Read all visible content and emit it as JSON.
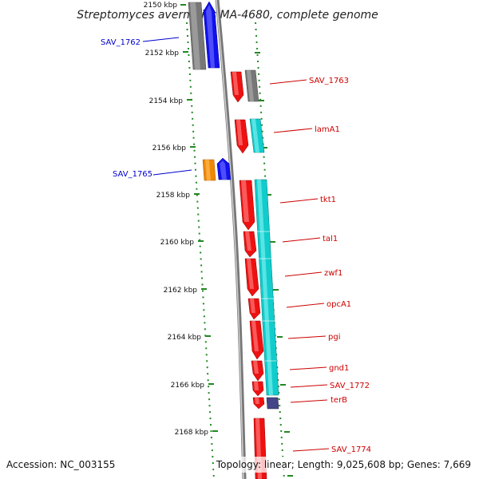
{
  "title": "Streptomyces avermitilis MA-4680, complete genome",
  "accession": "Accession: NC_003155",
  "topology": "Topology: linear; Length: 9,025,608 bp; Genes: 7,669",
  "positions": [
    "2150 kbp",
    "2152 kbp",
    "2154 kbp",
    "2156 kbp",
    "2158 kbp",
    "2160 kbp",
    "2162 kbp",
    "2164 kbp",
    "2166 kbp",
    "2168 kbp"
  ],
  "colors": {
    "red": "#ee1111",
    "gray": "#777777",
    "blue": "#1111ee",
    "cyan": "#11cccc",
    "orange": "#ee8800",
    "purple": "#444488",
    "green": "#228822",
    "red_label": "#cc0000",
    "blue_label": "#0000cc"
  },
  "genes": [
    {
      "label": "SAV_1762",
      "strand": "left",
      "color": "gray",
      "lane": "left",
      "start": 2150.0,
      "end": 2152.8
    },
    {
      "label": "",
      "strand": "left",
      "color": "blue",
      "lane": "inner-left",
      "start": 2149.9,
      "end": 2152.7
    },
    {
      "label": "SAV_1763",
      "strand": "right",
      "color": "red",
      "lane": "inner-right",
      "start": 2152.9,
      "end": 2154.2
    },
    {
      "label": "",
      "strand": "right",
      "color": "gray",
      "lane": "right",
      "start": 2152.9,
      "end": 2154.2
    },
    {
      "label": "lamA1",
      "strand": "right",
      "color": "red",
      "lane": "inner-right",
      "start": 2154.9,
      "end": 2156.3
    },
    {
      "label": "",
      "strand": "right",
      "color": "cyan",
      "lane": "right",
      "start": 2154.9,
      "end": 2156.3
    },
    {
      "label": "SAV_1765",
      "strand": "left",
      "color": "orange",
      "lane": "left",
      "start": 2156.6,
      "end": 2157.5
    },
    {
      "label": "",
      "strand": "left",
      "color": "blue",
      "lane": "inner-left",
      "start": 2156.6,
      "end": 2157.5
    },
    {
      "label": "tkt1",
      "strand": "right",
      "color": "red",
      "lane": "inner-right",
      "start": 2157.5,
      "end": 2160.0
    },
    {
      "label": "tal1",
      "strand": "right",
      "color": "red",
      "lane": "inner-right",
      "start": 2160.0,
      "end": 2161.1
    },
    {
      "label": "zwf1",
      "strand": "right",
      "color": "red",
      "lane": "inner-right",
      "start": 2161.1,
      "end": 2162.8
    },
    {
      "label": "opcA1",
      "strand": "right",
      "color": "red",
      "lane": "inner-right",
      "start": 2162.8,
      "end": 2163.7
    },
    {
      "label": "pgi",
      "strand": "right",
      "color": "red",
      "lane": "inner-right",
      "start": 2163.7,
      "end": 2165.4
    },
    {
      "label": "gnd1",
      "strand": "right",
      "color": "red",
      "lane": "inner-right",
      "start": 2165.4,
      "end": 2166.3
    },
    {
      "label": "SAV_1772",
      "strand": "right",
      "color": "red",
      "lane": "inner-right",
      "start": 2166.3,
      "end": 2166.9
    },
    {
      "label": "terB",
      "strand": "right",
      "color": "red",
      "lane": "inner-right",
      "start": 2166.9,
      "end": 2167.4
    },
    {
      "label": "",
      "strand": "right",
      "color": "cyan",
      "lane": "right",
      "start": 2157.5,
      "end": 2166.9
    },
    {
      "label": "",
      "strand": "right",
      "color": "purple",
      "lane": "right",
      "start": 2166.9,
      "end": 2167.4
    },
    {
      "label": "SAV_1774",
      "strand": "right",
      "color": "red",
      "lane": "inner-right",
      "start": 2167.9,
      "end": 2170.0
    }
  ]
}
